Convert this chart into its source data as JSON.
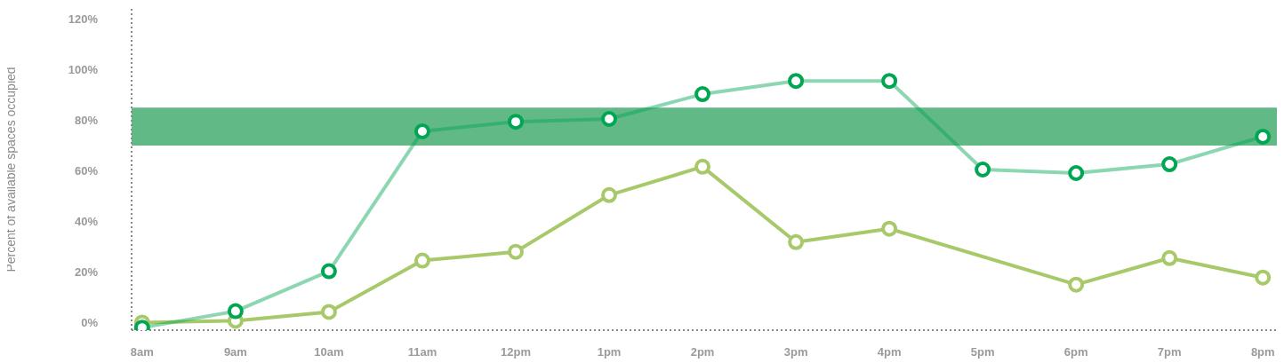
{
  "chart_data": {
    "type": "line",
    "ylabel": "Percent of available spaces occupied",
    "categories": [
      "8am",
      "9am",
      "10am",
      "11am",
      "12pm",
      "1pm",
      "2pm",
      "3pm",
      "4pm",
      "5pm",
      "6pm",
      "7pm",
      "8pm"
    ],
    "series": [
      {
        "color": "#00a651",
        "values": [
          -2,
          4.5,
          20.3,
          75.6,
          79.4,
          80.5,
          90.3,
          95.5,
          95.5,
          60.5,
          59.1,
          62.6,
          73.5
        ]
      },
      {
        "color": "#a8c96a",
        "values": [
          0,
          0.7,
          4.2,
          24.5,
          28,
          50.4,
          61.6,
          31.8,
          37.1,
          null,
          15,
          25.5,
          17.8
        ]
      }
    ],
    "ylim": [
      -3,
      124
    ],
    "yticks": [
      {
        "value": 0,
        "label": "0%"
      },
      {
        "value": 20,
        "label": "20%"
      },
      {
        "value": 40,
        "label": "40%"
      },
      {
        "value": 60,
        "label": "60%"
      },
      {
        "value": 80,
        "label": "80%"
      },
      {
        "value": 100,
        "label": "100%"
      },
      {
        "value": 120,
        "label": "120%"
      }
    ],
    "bands": [
      {
        "axis": "y",
        "from": 70,
        "to": 85,
        "color": "#3aa868"
      }
    ],
    "marker": "circle",
    "line_style": "solid"
  }
}
